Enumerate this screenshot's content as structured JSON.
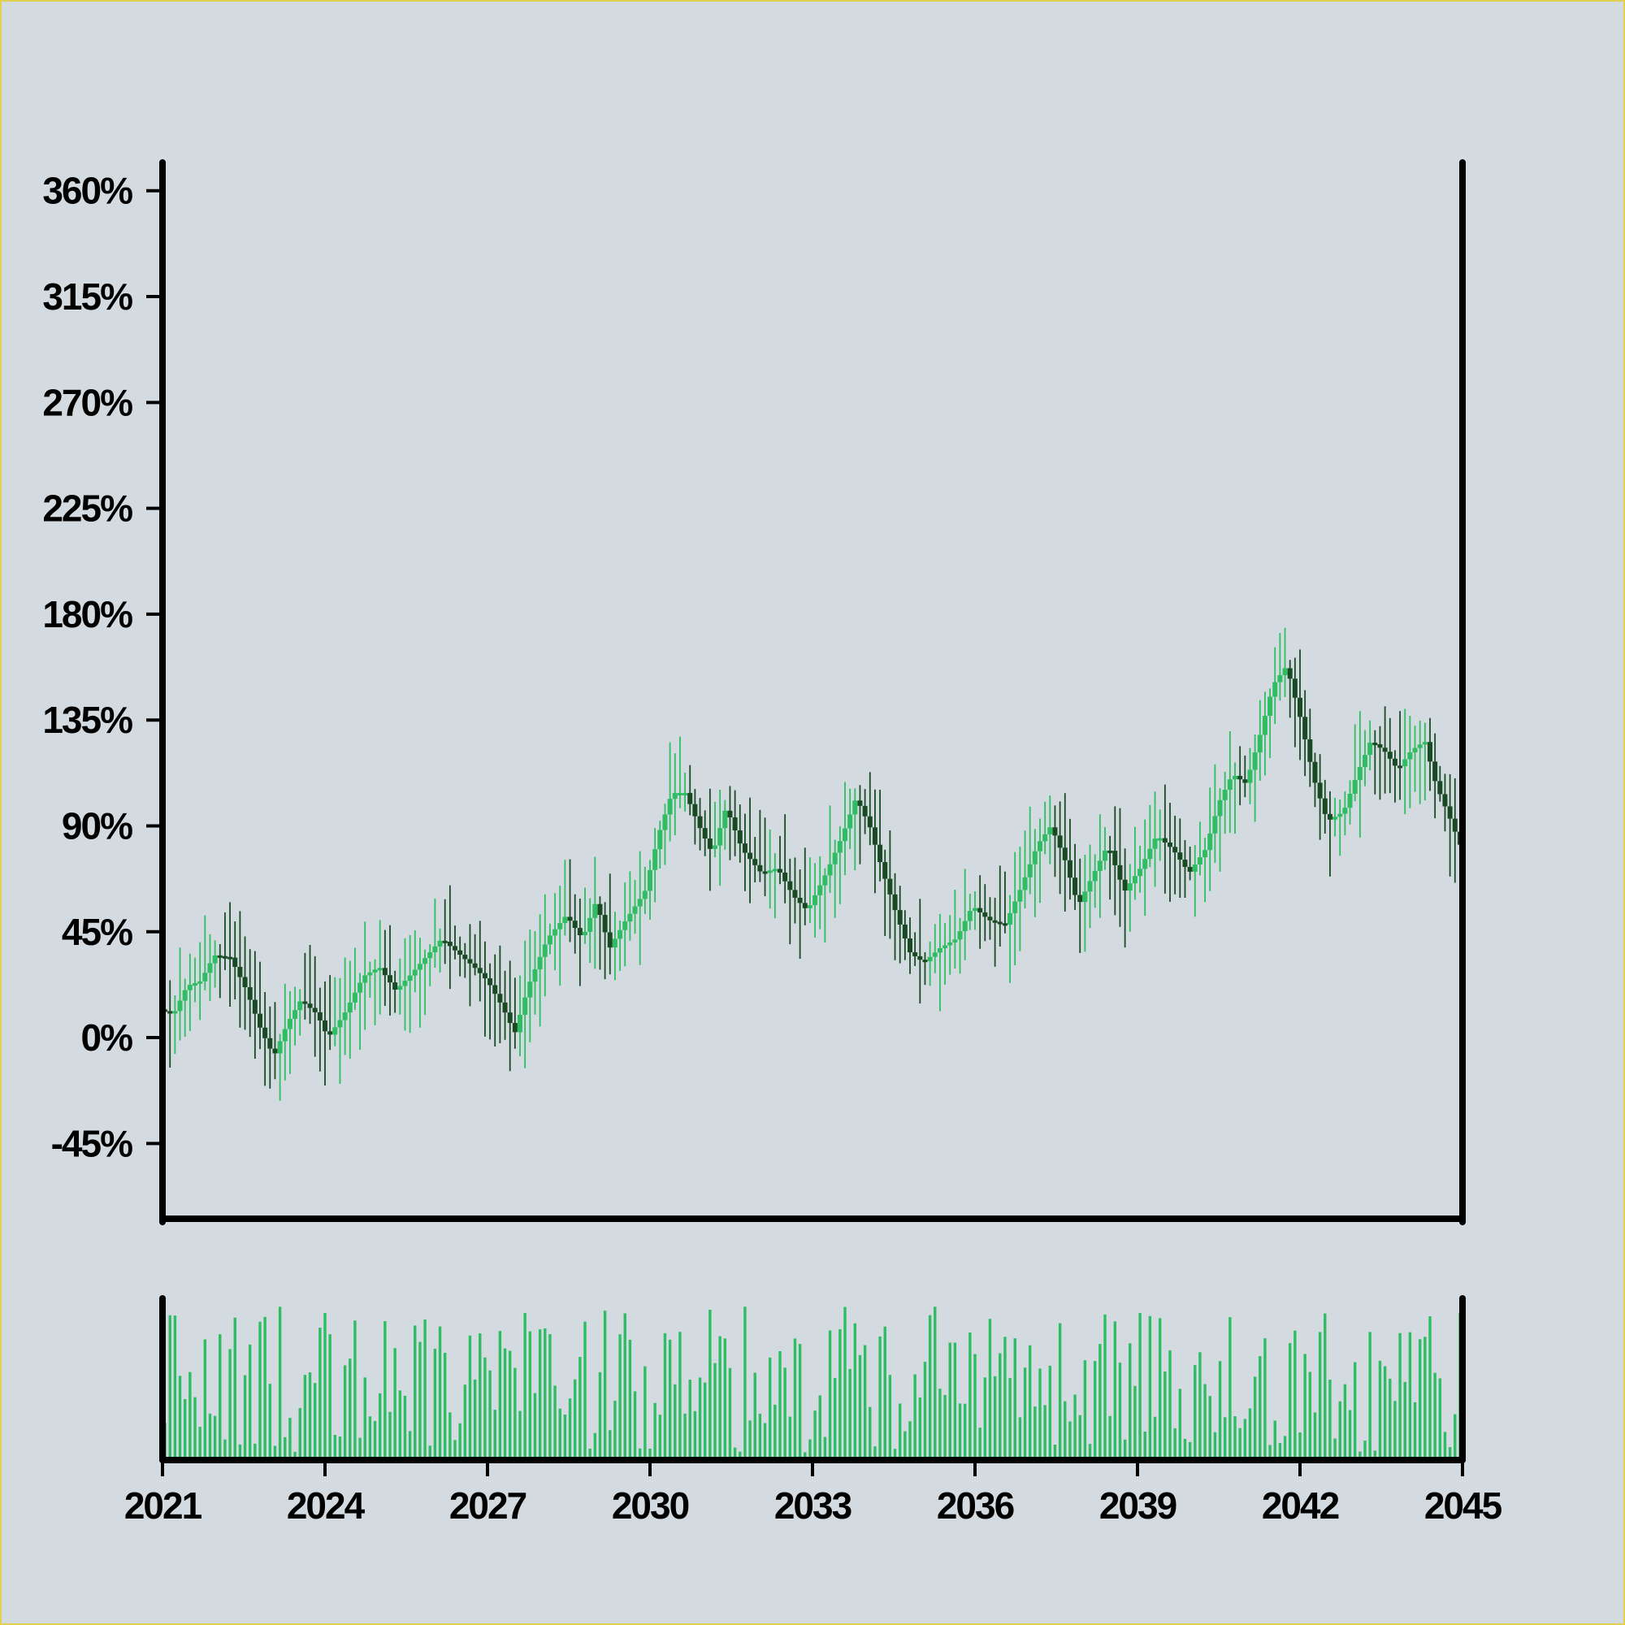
{
  "chart_data": {
    "type": "candlestick",
    "title": "",
    "xlabel": "",
    "ylabel": "",
    "x_ticks": [
      "2021",
      "2024",
      "2027",
      "2030",
      "2033",
      "2036",
      "2039",
      "2042",
      "2045"
    ],
    "x_range": [
      2021,
      2045
    ],
    "y_ticks": [
      "-45%",
      "0%",
      "45%",
      "90%",
      "135%",
      "180%",
      "225%",
      "270%",
      "315%",
      "360%"
    ],
    "y_tick_values": [
      -45,
      0,
      45,
      90,
      135,
      180,
      225,
      270,
      315,
      360
    ],
    "ylim": [
      -77,
      372
    ],
    "grid": false,
    "legend": "none",
    "colors": {
      "up": "#2ebd62",
      "down": "#1a4a24",
      "volume": "#2ebd62",
      "axis": "#000000",
      "background": "#d3dbe0"
    },
    "close_path": [
      [
        2021.0,
        12
      ],
      [
        2021.25,
        10
      ],
      [
        2021.5,
        22
      ],
      [
        2021.75,
        24
      ],
      [
        2022.0,
        35
      ],
      [
        2022.3,
        34
      ],
      [
        2022.6,
        20
      ],
      [
        2022.85,
        4
      ],
      [
        2023.1,
        -8
      ],
      [
        2023.35,
        6
      ],
      [
        2023.6,
        16
      ],
      [
        2023.9,
        10
      ],
      [
        2024.1,
        0
      ],
      [
        2024.4,
        10
      ],
      [
        2024.75,
        26
      ],
      [
        2025.05,
        30
      ],
      [
        2025.35,
        20
      ],
      [
        2025.6,
        26
      ],
      [
        2025.9,
        34
      ],
      [
        2026.2,
        42
      ],
      [
        2026.5,
        36
      ],
      [
        2026.8,
        30
      ],
      [
        2027.05,
        24
      ],
      [
        2027.3,
        14
      ],
      [
        2027.55,
        2
      ],
      [
        2027.8,
        22
      ],
      [
        2028.15,
        42
      ],
      [
        2028.5,
        52
      ],
      [
        2028.8,
        42
      ],
      [
        2029.05,
        58
      ],
      [
        2029.3,
        38
      ],
      [
        2029.6,
        50
      ],
      [
        2029.95,
        62
      ],
      [
        2030.2,
        86
      ],
      [
        2030.45,
        104
      ],
      [
        2030.7,
        104
      ],
      [
        2030.95,
        90
      ],
      [
        2031.2,
        78
      ],
      [
        2031.45,
        98
      ],
      [
        2031.75,
        80
      ],
      [
        2032.1,
        70
      ],
      [
        2032.4,
        72
      ],
      [
        2032.7,
        60
      ],
      [
        2032.95,
        54
      ],
      [
        2033.3,
        70
      ],
      [
        2033.6,
        86
      ],
      [
        2033.85,
        102
      ],
      [
        2034.1,
        90
      ],
      [
        2034.35,
        70
      ],
      [
        2034.6,
        52
      ],
      [
        2034.85,
        36
      ],
      [
        2035.1,
        32
      ],
      [
        2035.4,
        38
      ],
      [
        2035.7,
        42
      ],
      [
        2036.0,
        56
      ],
      [
        2036.3,
        50
      ],
      [
        2036.6,
        48
      ],
      [
        2036.9,
        64
      ],
      [
        2037.2,
        82
      ],
      [
        2037.45,
        90
      ],
      [
        2037.7,
        76
      ],
      [
        2037.95,
        56
      ],
      [
        2038.2,
        68
      ],
      [
        2038.5,
        82
      ],
      [
        2038.8,
        62
      ],
      [
        2039.1,
        72
      ],
      [
        2039.4,
        86
      ],
      [
        2039.7,
        80
      ],
      [
        2040.0,
        70
      ],
      [
        2040.3,
        80
      ],
      [
        2040.55,
        100
      ],
      [
        2040.8,
        112
      ],
      [
        2041.05,
        108
      ],
      [
        2041.3,
        128
      ],
      [
        2041.55,
        150
      ],
      [
        2041.8,
        158
      ],
      [
        2042.05,
        136
      ],
      [
        2042.3,
        110
      ],
      [
        2042.55,
        92
      ],
      [
        2042.85,
        96
      ],
      [
        2043.1,
        112
      ],
      [
        2043.35,
        126
      ],
      [
        2043.6,
        122
      ],
      [
        2043.85,
        114
      ],
      [
        2044.1,
        122
      ],
      [
        2044.35,
        126
      ],
      [
        2044.55,
        108
      ],
      [
        2044.8,
        94
      ],
      [
        2045.0,
        82
      ]
    ],
    "volume_scale": [
      0,
      100
    ]
  }
}
